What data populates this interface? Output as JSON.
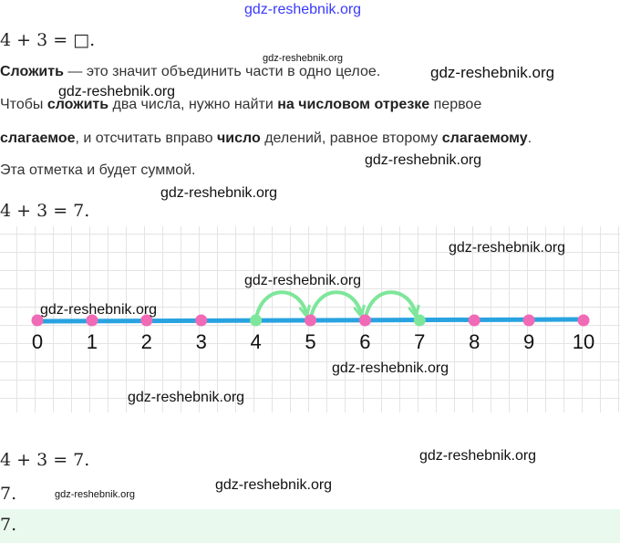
{
  "watermark": "gdz-reshebnik.org",
  "header_link": "gdz-reshebnik.org",
  "task": "4 + 3 = □.",
  "paragraphs": [
    [
      {
        "t": "Сложить",
        "b": true
      },
      {
        "t": " — это значит объединить части в одно целое.",
        "b": false
      }
    ],
    [
      {
        "t": "Чтобы ",
        "b": false
      },
      {
        "t": "сложить",
        "b": true
      },
      {
        "t": " два числа, нужно найти ",
        "b": false
      },
      {
        "t": "на числовом отрезке",
        "b": true
      },
      {
        "t": " первое",
        "b": false
      }
    ],
    [
      {
        "t": "слагаемое",
        "b": true
      },
      {
        "t": ", и отсчитать вправо ",
        "b": false
      },
      {
        "t": "число",
        "b": true
      },
      {
        "t": " делений, равное второму ",
        "b": false
      },
      {
        "t": "слагаемому",
        "b": true
      },
      {
        "t": ".",
        "b": false
      }
    ],
    [
      {
        "t": "Эта отметка и будет суммой.",
        "b": false
      }
    ]
  ],
  "result1": "4 + 3 = 7.",
  "number_line": {
    "labels": [
      "0",
      "1",
      "2",
      "3",
      "4",
      "5",
      "6",
      "7",
      "8",
      "9",
      "10"
    ],
    "start": 4,
    "jumps": 3,
    "end": 7,
    "colors": {
      "line": "#29a3e0",
      "point": "#f06ab6",
      "highlight": "#7ee69a",
      "grid": "#e4e4e4"
    }
  },
  "result2": "4 + 3 = 7.",
  "answer_plain": "7.",
  "answer_box": "7.",
  "colors": {
    "answer_bg": "#e9f9ee",
    "link": "#3a3aff"
  }
}
